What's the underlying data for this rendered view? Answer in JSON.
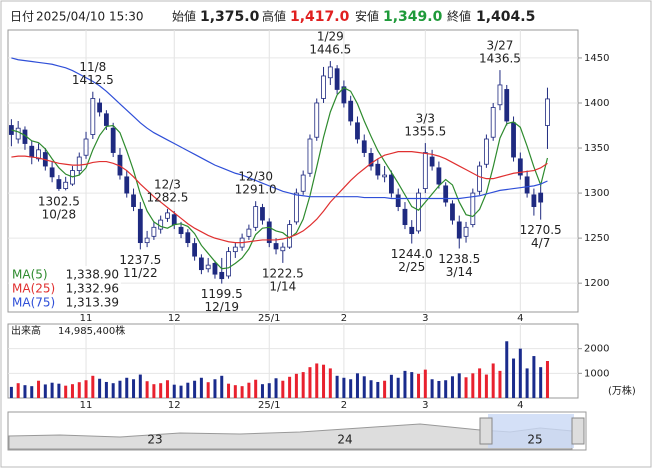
{
  "header": {
    "date_label": "日付",
    "datetime": "2025/04/10 15:30",
    "open_label": "始値",
    "open": {
      "value": 1375,
      "label": "1,375.0"
    },
    "high_label": "高値",
    "high": {
      "value": 1417,
      "label": "1,417.0"
    },
    "low_label": "安値",
    "low": {
      "value": 1349,
      "label": "1,349.0"
    },
    "close_label": "終値",
    "close": {
      "value": 1404.5,
      "label": "1,404.5"
    }
  },
  "chart_data": [
    {
      "type": "candlestick",
      "categories": [
        null,
        null,
        null,
        null,
        null,
        null,
        null,
        null,
        null,
        null,
        null,
        "11",
        null,
        null,
        null,
        null,
        null,
        null,
        null,
        null,
        null,
        null,
        null,
        null,
        "12",
        null,
        null,
        null,
        null,
        null,
        null,
        null,
        null,
        null,
        null,
        null,
        null,
        null,
        "25/1",
        null,
        null,
        null,
        null,
        null,
        null,
        null,
        null,
        null,
        null,
        "2",
        null,
        null,
        null,
        null,
        null,
        null,
        null,
        null,
        null,
        null,
        null,
        "3",
        null,
        null,
        null,
        null,
        null,
        null,
        null,
        null,
        null,
        null,
        null,
        null,
        null,
        "4",
        null,
        null,
        null,
        null
      ],
      "ohlc": [
        [
          1375,
          1382,
          1352,
          1365
        ],
        [
          1360,
          1380,
          1355,
          1372
        ],
        [
          1370,
          1374,
          1348,
          1355
        ],
        [
          1352,
          1358,
          1332,
          1340
        ],
        [
          1338,
          1355,
          1335,
          1348
        ],
        [
          1345,
          1350,
          1325,
          1330
        ],
        [
          1328,
          1335,
          1312,
          1318
        ],
        [
          1315,
          1320,
          1302.5,
          1305
        ],
        [
          1305,
          1318,
          1303,
          1312
        ],
        [
          1310,
          1330,
          1308,
          1325
        ],
        [
          1325,
          1345,
          1320,
          1340
        ],
        [
          1342,
          1368,
          1338,
          1360
        ],
        [
          1365,
          1412.5,
          1360,
          1405
        ],
        [
          1400,
          1405,
          1385,
          1390
        ],
        [
          1388,
          1392,
          1370,
          1375
        ],
        [
          1372,
          1378,
          1340,
          1345
        ],
        [
          1342,
          1350,
          1315,
          1320
        ],
        [
          1318,
          1325,
          1295,
          1300
        ],
        [
          1298,
          1305,
          1280,
          1285
        ],
        [
          1282,
          1290,
          1237.5,
          1245
        ],
        [
          1245,
          1258,
          1240,
          1250
        ],
        [
          1252,
          1268,
          1248,
          1262
        ],
        [
          1260,
          1275,
          1255,
          1270
        ],
        [
          1272,
          1282.5,
          1268,
          1278
        ],
        [
          1276,
          1280,
          1260,
          1265
        ],
        [
          1262,
          1268,
          1250,
          1255
        ],
        [
          1256,
          1260,
          1240,
          1245
        ],
        [
          1244,
          1250,
          1225,
          1230
        ],
        [
          1228,
          1232,
          1210,
          1215
        ],
        [
          1216,
          1228,
          1212,
          1220
        ],
        [
          1222,
          1225,
          1205,
          1210
        ],
        [
          1212,
          1228,
          1199.5,
          1205
        ],
        [
          1208,
          1240,
          1205,
          1235
        ],
        [
          1235,
          1245,
          1228,
          1240
        ],
        [
          1240,
          1255,
          1236,
          1250
        ],
        [
          1252,
          1265,
          1248,
          1260
        ],
        [
          1262,
          1291,
          1258,
          1285
        ],
        [
          1284,
          1288,
          1265,
          1270
        ],
        [
          1268,
          1272,
          1240,
          1245
        ],
        [
          1244,
          1250,
          1232,
          1238
        ],
        [
          1236,
          1245,
          1222.5,
          1240
        ],
        [
          1240,
          1270,
          1238,
          1265
        ],
        [
          1268,
          1305,
          1265,
          1300
        ],
        [
          1302,
          1325,
          1298,
          1320
        ],
        [
          1322,
          1365,
          1318,
          1360
        ],
        [
          1362,
          1405,
          1358,
          1400
        ],
        [
          1405,
          1440,
          1400,
          1430
        ],
        [
          1428,
          1446.5,
          1420,
          1440
        ],
        [
          1438,
          1442,
          1410,
          1415
        ],
        [
          1418,
          1425,
          1395,
          1400
        ],
        [
          1402,
          1408,
          1375,
          1380
        ],
        [
          1378,
          1385,
          1355,
          1360
        ],
        [
          1358,
          1365,
          1340,
          1345
        ],
        [
          1344,
          1350,
          1325,
          1330
        ],
        [
          1332,
          1338,
          1315,
          1320
        ],
        [
          1318,
          1330,
          1312,
          1320
        ],
        [
          1320,
          1325,
          1295,
          1300
        ],
        [
          1298,
          1305,
          1280,
          1285
        ],
        [
          1282,
          1290,
          1260,
          1265
        ],
        [
          1262,
          1270,
          1244,
          1255
        ],
        [
          1258,
          1305,
          1255,
          1300
        ],
        [
          1305,
          1355.5,
          1300,
          1345
        ],
        [
          1340,
          1348,
          1325,
          1330
        ],
        [
          1328,
          1335,
          1305,
          1310
        ],
        [
          1308,
          1312,
          1285,
          1290
        ],
        [
          1288,
          1292,
          1265,
          1270
        ],
        [
          1268,
          1275,
          1238.5,
          1250
        ],
        [
          1252,
          1268,
          1245,
          1262
        ],
        [
          1265,
          1305,
          1262,
          1300
        ],
        [
          1302,
          1335,
          1298,
          1330
        ],
        [
          1332,
          1365,
          1328,
          1360
        ],
        [
          1362,
          1400,
          1358,
          1395
        ],
        [
          1398,
          1436.5,
          1392,
          1420
        ],
        [
          1415,
          1420,
          1375,
          1380
        ],
        [
          1378,
          1385,
          1335,
          1340
        ],
        [
          1338,
          1345,
          1315,
          1320
        ],
        [
          1318,
          1325,
          1295,
          1300
        ],
        [
          1298,
          1305,
          1275,
          1285
        ],
        [
          1300,
          1310,
          1270.5,
          1290
        ],
        [
          1375,
          1417,
          1349,
          1404.5
        ]
      ],
      "up_color": "#ffffff",
      "down_color": "#1f2a80",
      "wick_color": "#1f2a80",
      "series": [
        {
          "name": "MA(5)",
          "color": "#2e8b2e",
          "legend_value": {
            "value": 1338.9,
            "label": "1,338.90"
          },
          "values": [
            1370,
            1368,
            1364,
            1358,
            1356,
            1349,
            1338,
            1328,
            1321,
            1318,
            1320,
            1328,
            1348,
            1364,
            1374,
            1375,
            1367,
            1347,
            1325,
            1299,
            1280,
            1268,
            1263,
            1261,
            1265,
            1266,
            1263,
            1255,
            1242,
            1233,
            1224,
            1216,
            1217,
            1222,
            1228,
            1238,
            1254,
            1261,
            1262,
            1258,
            1256,
            1250,
            1256,
            1271,
            1297,
            1329,
            1362,
            1390,
            1409,
            1417,
            1413,
            1399,
            1380,
            1363,
            1347,
            1335,
            1323,
            1311,
            1298,
            1285,
            1281,
            1290,
            1299,
            1308,
            1315,
            1309,
            1290,
            1276,
            1274,
            1282,
            1300,
            1329,
            1361,
            1377,
            1379,
            1373,
            1352,
            1329,
            1309,
            1338.9
          ]
        },
        {
          "name": "MA(25)",
          "color": "#e03030",
          "legend_value": {
            "value": 1332.96,
            "label": "1,332.96"
          },
          "values": [
            1340,
            1341,
            1341,
            1340,
            1339,
            1337,
            1335,
            1333,
            1332,
            1331,
            1331,
            1332,
            1334,
            1335,
            1335,
            1333,
            1330,
            1325,
            1318,
            1310,
            1303,
            1296,
            1290,
            1284,
            1278,
            1272,
            1266,
            1261,
            1257,
            1253,
            1250,
            1248,
            1246,
            1245,
            1245,
            1246,
            1247,
            1248,
            1248,
            1248,
            1249,
            1251,
            1254,
            1258,
            1264,
            1271,
            1280,
            1290,
            1298,
            1306,
            1314,
            1321,
            1327,
            1333,
            1338,
            1342,
            1344,
            1346,
            1346,
            1346,
            1345,
            1344,
            1343,
            1341,
            1338,
            1334,
            1330,
            1326,
            1322,
            1318,
            1316,
            1316,
            1318,
            1320,
            1322,
            1323,
            1324,
            1325,
            1328,
            1332.96
          ]
        },
        {
          "name": "MA(75)",
          "color": "#2f4fd8",
          "legend_value": {
            "value": 1313.39,
            "label": "1,313.39"
          },
          "values": [
            1450,
            1448,
            1447,
            1446,
            1445,
            1444,
            1443,
            1441,
            1439,
            1436,
            1432,
            1428,
            1424,
            1419,
            1413,
            1406,
            1399,
            1392,
            1385,
            1378,
            1372,
            1367,
            1363,
            1359,
            1355,
            1351,
            1347,
            1343,
            1339,
            1335,
            1331,
            1328,
            1325,
            1322,
            1320,
            1317,
            1314,
            1311,
            1308,
            1305,
            1302,
            1300,
            1298,
            1297,
            1296,
            1296,
            1296,
            1296,
            1296,
            1296,
            1296,
            1296,
            1295,
            1295,
            1295,
            1295,
            1294,
            1294,
            1294,
            1294,
            1294,
            1294,
            1294,
            1294,
            1294,
            1294,
            1294,
            1295,
            1296,
            1297,
            1299,
            1301,
            1303,
            1304,
            1305,
            1306,
            1307,
            1308,
            1310,
            1313.39
          ]
        }
      ],
      "annotations": [
        {
          "date": "10/28",
          "value": 1302.5
        },
        {
          "date": "11/8",
          "value": 1412.5
        },
        {
          "date": "11/22",
          "value": 1237.5
        },
        {
          "date": "12/3",
          "value": 1282.5
        },
        {
          "date": "12/19",
          "value": 1199.5
        },
        {
          "date": "12/30",
          "value": {
            "value": 1291,
            "label": "1291.0"
          }
        },
        {
          "date": "1/14",
          "value": 1222.5
        },
        {
          "date": "1/29",
          "value": 1446.5
        },
        {
          "date": "2/25",
          "value": {
            "value": 1244,
            "label": "1244.0"
          }
        },
        {
          "date": "3/3",
          "value": 1355.5
        },
        {
          "date": "3/14",
          "value": 1238.5
        },
        {
          "date": "3/27",
          "value": 1436.5
        },
        {
          "date": "4/7",
          "value": 1270.5
        }
      ],
      "ylim": [
        1168,
        1481
      ],
      "yticks": [
        1200,
        1250,
        1300,
        1350,
        1400,
        1450
      ],
      "grid": true
    },
    {
      "type": "bar",
      "title": "出来高",
      "total": {
        "value": 14985400,
        "label": "14,985,400株"
      },
      "unit": "(万株)",
      "up_color": "#e8212e",
      "down_color": "#1a2b8c",
      "values": [
        450,
        600,
        520,
        480,
        700,
        550,
        620,
        580,
        500,
        560,
        640,
        720,
        900,
        780,
        650,
        600,
        700,
        820,
        760,
        950,
        680,
        560,
        600,
        720,
        540,
        500,
        620,
        700,
        820,
        640,
        760,
        900,
        580,
        520,
        480,
        620,
        740,
        560,
        600,
        800,
        700,
        860,
        980,
        1050,
        1250,
        1400,
        1350,
        1200,
        900,
        820,
        760,
        1000,
        880,
        720,
        650,
        700,
        940,
        820,
        1100,
        1050,
        980,
        1150,
        760,
        690,
        720,
        880,
        1000,
        840,
        1000,
        1200,
        950,
        1400,
        1100,
        2300,
        1600,
        2000,
        1200,
        1700,
        1250,
        1500
      ],
      "ylim": [
        0,
        3000
      ],
      "yticks": [
        1000,
        2000
      ],
      "grid": true
    }
  ],
  "navigator": {
    "labels": [
      "23",
      "24",
      "25"
    ]
  }
}
